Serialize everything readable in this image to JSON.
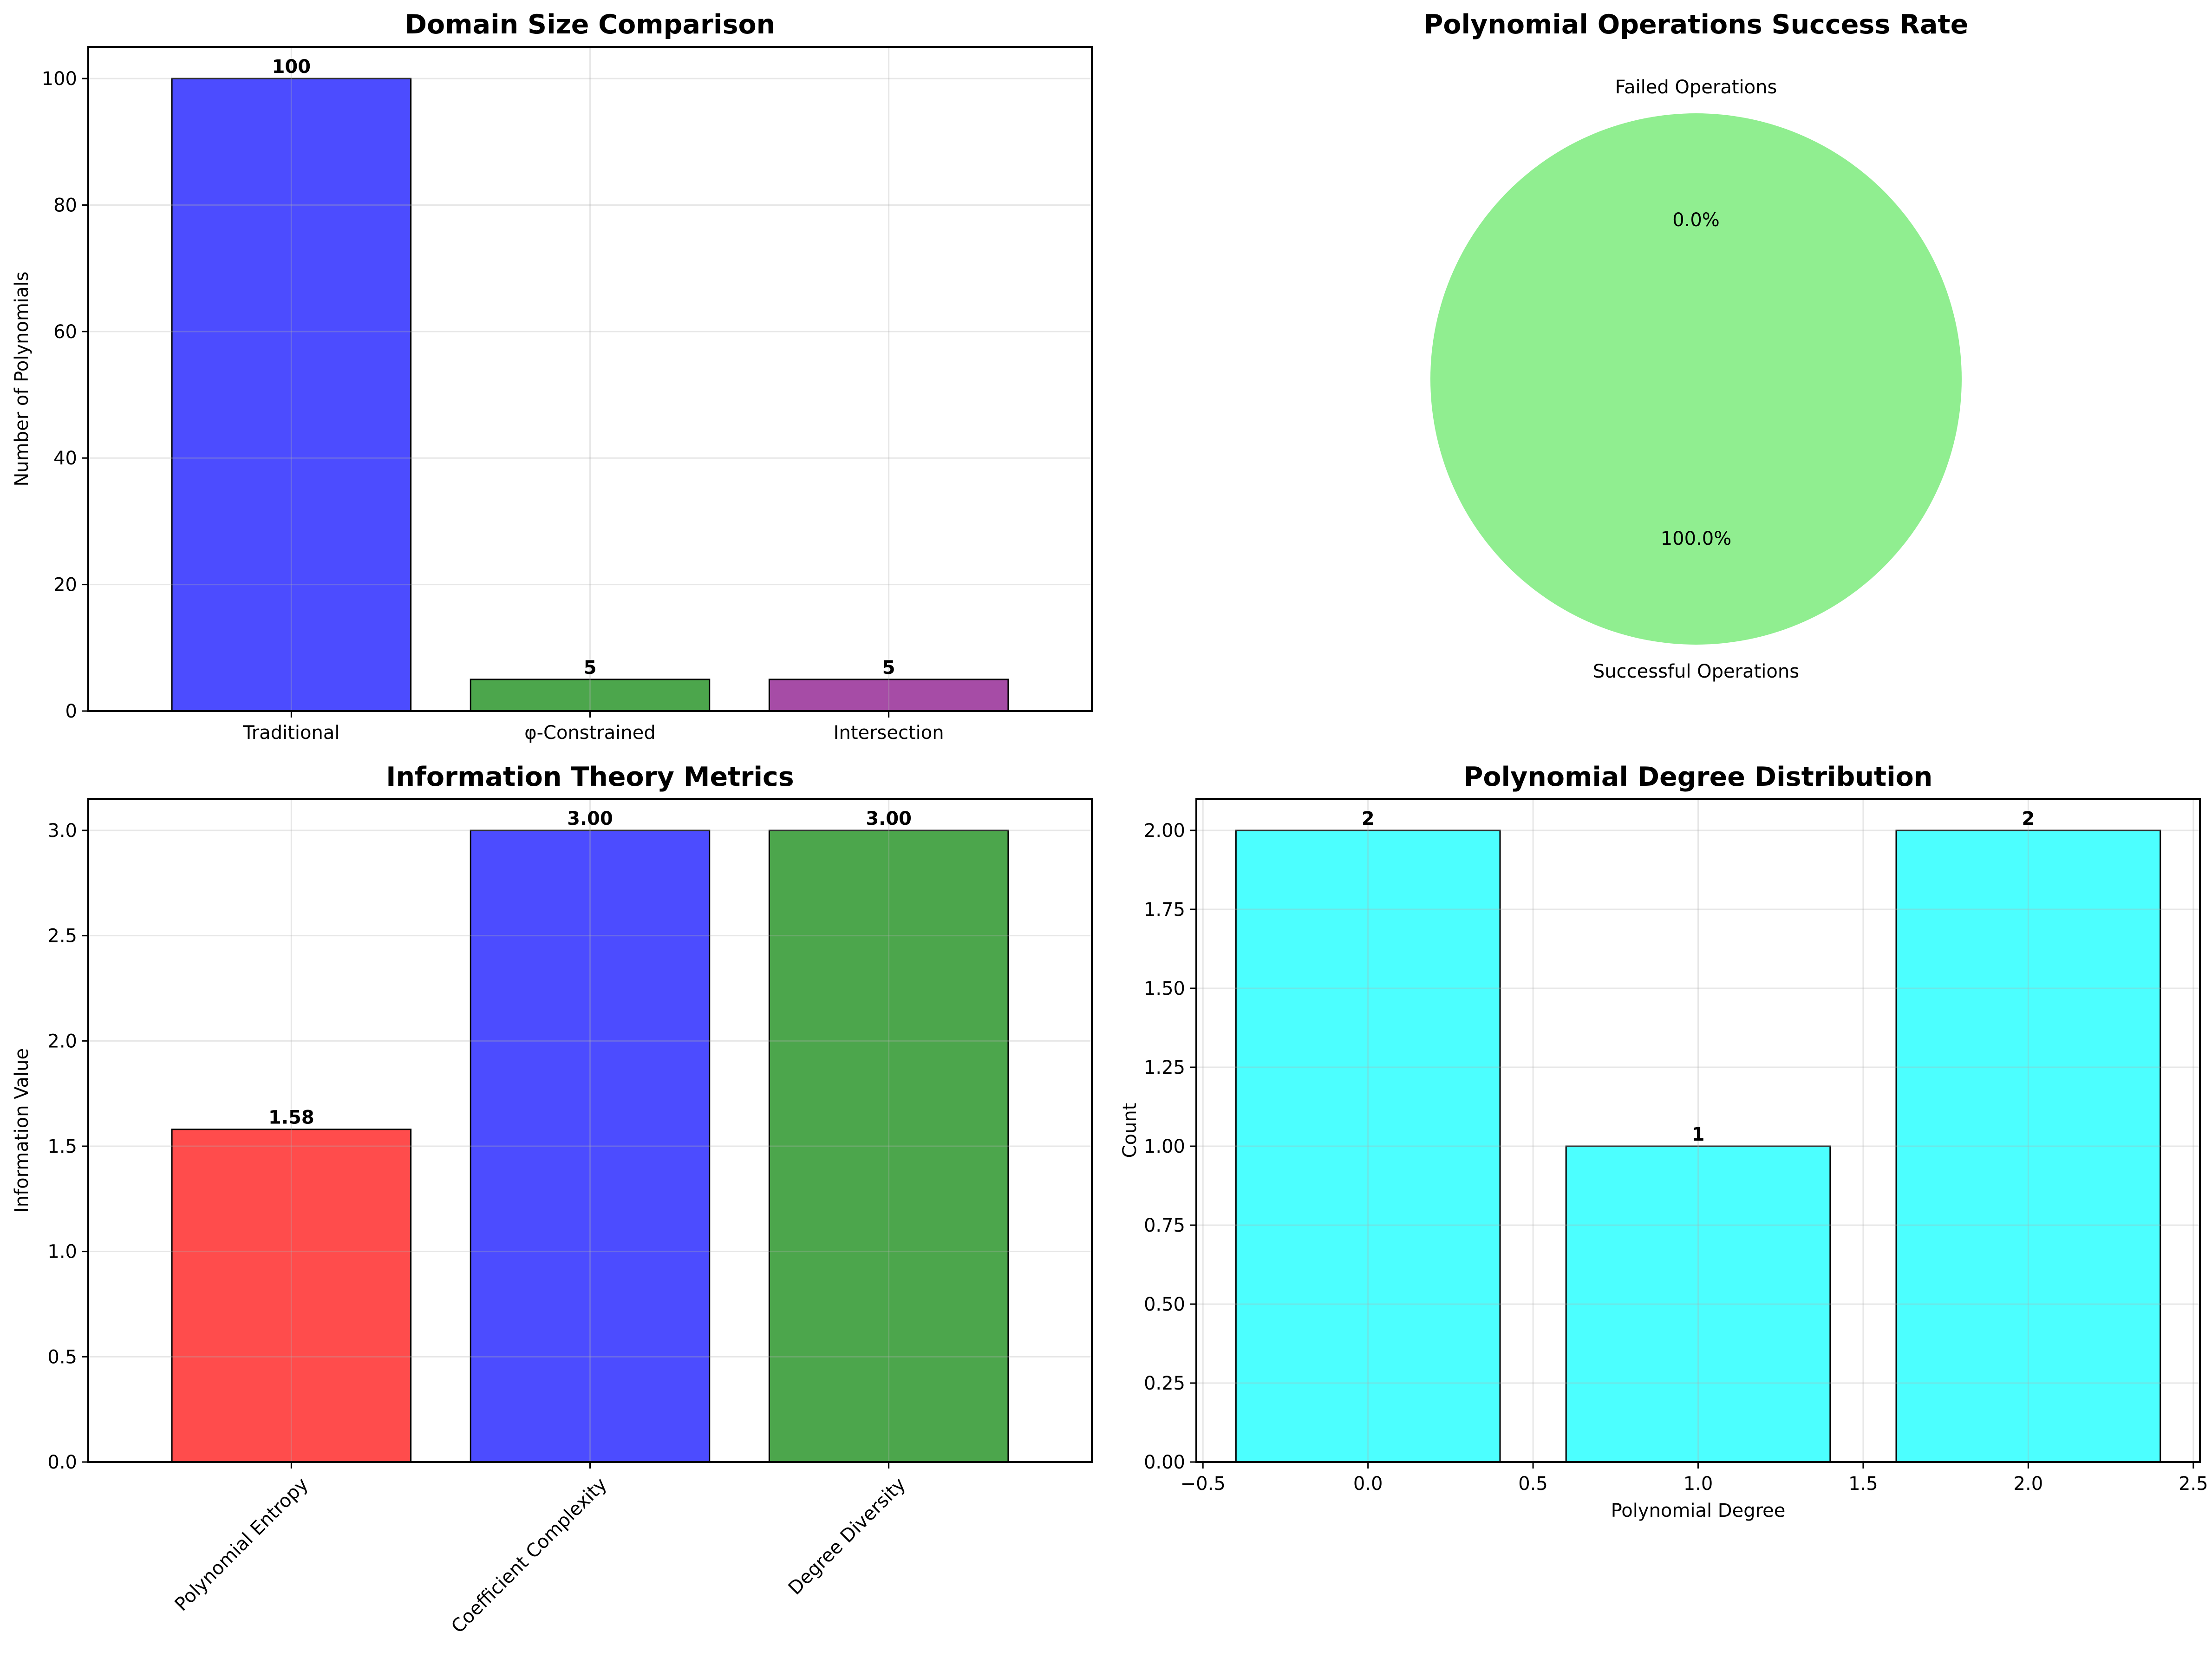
{
  "chart_data": [
    {
      "id": "domain",
      "type": "bar",
      "title": "Domain Size Comparison",
      "xlabel": "",
      "ylabel": "Number of Polynomials",
      "categories": [
        "Traditional",
        "φ-Constrained",
        "Intersection"
      ],
      "values": [
        100,
        5,
        5
      ],
      "value_labels": [
        "100",
        "5",
        "5"
      ],
      "colors": [
        "#0000ff",
        "#008000",
        "#800080"
      ],
      "bar_alpha": 0.7,
      "ylim": [
        0,
        105
      ],
      "yticks": [
        0,
        20,
        40,
        60,
        80,
        100
      ],
      "ytick_labels": [
        "0",
        "20",
        "40",
        "60",
        "80",
        "100"
      ],
      "grid": true
    },
    {
      "id": "success",
      "type": "pie",
      "title": "Polynomial Operations Success Rate",
      "labels": [
        "Successful Operations",
        "Failed Operations"
      ],
      "values": [
        100.0,
        0.0
      ],
      "pct_labels": [
        "100.0%",
        "0.0%"
      ],
      "colors": [
        "#90ee90",
        "#f08080"
      ]
    },
    {
      "id": "info",
      "type": "bar",
      "title": "Information Theory Metrics",
      "xlabel": "",
      "ylabel": "Information Value",
      "categories": [
        "Polynomial Entropy",
        "Coefficient Complexity",
        "Degree Diversity"
      ],
      "values": [
        1.58,
        3.0,
        3.0
      ],
      "value_labels": [
        "1.58",
        "3.00",
        "3.00"
      ],
      "colors": [
        "#ff0000",
        "#0000ff",
        "#008000"
      ],
      "bar_alpha": 0.7,
      "ylim": [
        0,
        3.15
      ],
      "yticks": [
        0,
        0.5,
        1.0,
        1.5,
        2.0,
        2.5,
        3.0
      ],
      "ytick_labels": [
        "0.0",
        "0.5",
        "1.0",
        "1.5",
        "2.0",
        "2.5",
        "3.0"
      ],
      "xtick_rotation": 45,
      "grid": true
    },
    {
      "id": "degree",
      "type": "bar",
      "title": "Polynomial Degree Distribution",
      "xlabel": "Polynomial Degree",
      "ylabel": "Count",
      "x": [
        0,
        1,
        2
      ],
      "values": [
        2,
        1,
        2
      ],
      "value_labels": [
        "2",
        "1",
        "2"
      ],
      "bar_width": 0.8,
      "colors": [
        "#00ffff",
        "#00ffff",
        "#00ffff"
      ],
      "bar_alpha": 0.7,
      "xlim": [
        -0.52,
        2.52
      ],
      "ylim": [
        0,
        2.1
      ],
      "xticks": [
        -0.5,
        0.0,
        0.5,
        1.0,
        1.5,
        2.0,
        2.5
      ],
      "xtick_labels": [
        "−0.5",
        "0.0",
        "0.5",
        "1.0",
        "1.5",
        "2.0",
        "2.5"
      ],
      "yticks": [
        0,
        0.25,
        0.5,
        0.75,
        1.0,
        1.25,
        1.5,
        1.75,
        2.0
      ],
      "ytick_labels": [
        "0.00",
        "0.25",
        "0.50",
        "0.75",
        "1.00",
        "1.25",
        "1.50",
        "1.75",
        "2.00"
      ],
      "grid": true
    }
  ]
}
